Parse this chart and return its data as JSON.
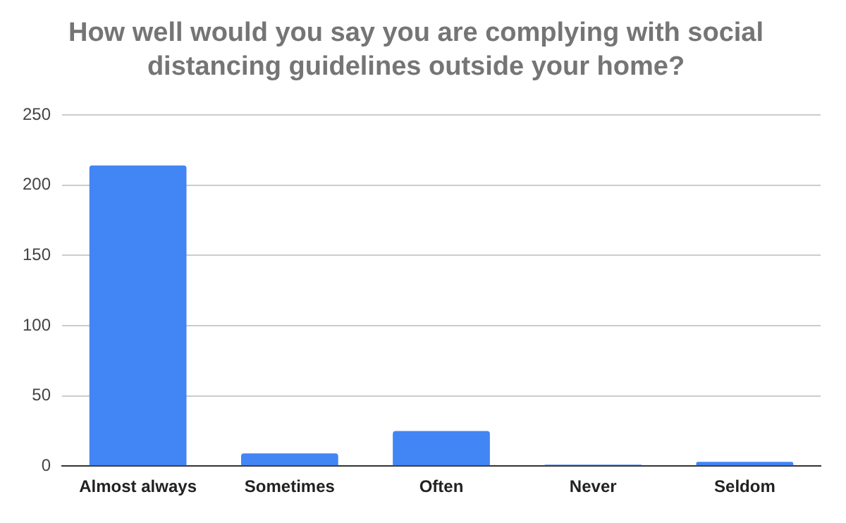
{
  "chart_data": {
    "type": "bar",
    "title": "How well would you say you are complying with social distancing guidelines outside your home?",
    "categories": [
      "Almost always",
      "Sometimes",
      "Often",
      "Never",
      "Seldom"
    ],
    "values": [
      214,
      9,
      25,
      1,
      3
    ],
    "color": "#4285f4",
    "ylim": [
      0,
      250
    ],
    "yticks": [
      0,
      50,
      100,
      150,
      200,
      250
    ],
    "grid": "y"
  }
}
